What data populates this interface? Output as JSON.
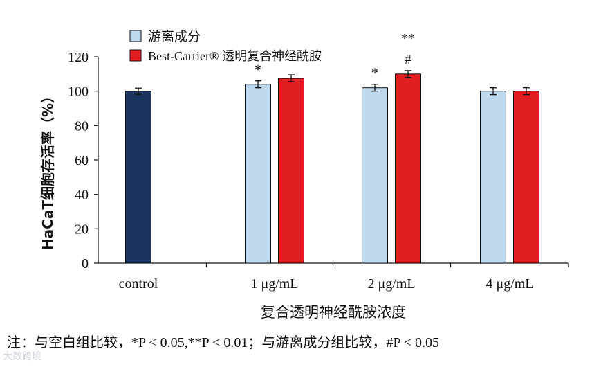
{
  "chart_data": {
    "type": "bar",
    "title": "",
    "xlabel": "复合透明神经酰胺浓度",
    "ylabel": "HaCaT细胞存活率（%）",
    "ylim": [
      0,
      120
    ],
    "yticks": [
      0,
      20,
      40,
      60,
      80,
      100,
      120
    ],
    "categories": [
      "control",
      "1 μg/mL",
      "2 μg/mL",
      "4 μg/mL"
    ],
    "series": [
      {
        "name": "control",
        "values": [
          100,
          null,
          null,
          null
        ],
        "errors": [
          1.8,
          null,
          null,
          null
        ],
        "color": "#1a3560"
      },
      {
        "name": "游离成分",
        "values": [
          null,
          104,
          102,
          100
        ],
        "errors": [
          null,
          2.0,
          2.0,
          2.0
        ],
        "color": "#bed8ee"
      },
      {
        "name": "Best-Carrier® 透明复合神经酰胺",
        "values": [
          null,
          107.5,
          110,
          100
        ],
        "errors": [
          null,
          2.0,
          2.0,
          2.0
        ],
        "color": "#e21d22"
      }
    ],
    "legend": {
      "placement": "top-left",
      "entries": [
        "游离成分",
        "Best-Carrier® 透明复合神经酰胺"
      ]
    },
    "annotations": [
      {
        "category": "1 μg/mL",
        "series": "游离成分",
        "text": "*"
      },
      {
        "category": "2 μg/mL",
        "series": "游离成分",
        "text": "*"
      },
      {
        "category": "2 μg/mL",
        "series": "Best-Carrier® 透明复合神经酰胺",
        "text": "#"
      },
      {
        "category": "2 μg/mL",
        "series": "Best-Carrier® 透明复合神经酰胺",
        "text": "**"
      }
    ],
    "grid": false
  },
  "footnote": {
    "prefix": "注：与空白组比较，",
    "p1": "*P < 0.05,**P < 0.01",
    "mid": "；与游离成分组比较，",
    "p2": "#P < 0.05"
  },
  "watermark": "大数跨境",
  "colors": {
    "control": "#1a3560",
    "free": "#bed8ee",
    "carrier": "#e21d22"
  }
}
